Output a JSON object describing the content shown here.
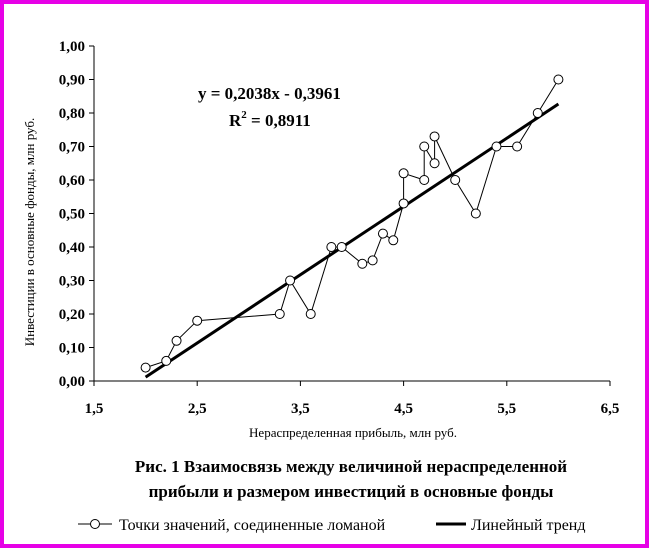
{
  "chart_data": {
    "type": "scatter",
    "x_axis": {
      "label": "Нераспределенная прибыль, млн руб.",
      "range": [
        1.5,
        6.5
      ],
      "ticks": [
        1.5,
        2.5,
        3.5,
        4.5,
        5.5,
        6.5
      ],
      "tick_labels": [
        "1,5",
        "2,5",
        "3,5",
        "4,5",
        "5,5",
        "6,5"
      ]
    },
    "y_axis": {
      "label": "Инвестиции в основные фонды, млн руб.",
      "range": [
        0,
        1.0
      ],
      "ticks": [
        0,
        0.1,
        0.2,
        0.3,
        0.4,
        0.5,
        0.6,
        0.7,
        0.8,
        0.9,
        1.0
      ],
      "tick_labels": [
        "0,00",
        "0,10",
        "0,20",
        "0,30",
        "0,40",
        "0,50",
        "0,60",
        "0,70",
        "0,80",
        "0,90",
        "1,00"
      ]
    },
    "grid": false,
    "series": [
      {
        "name": "Точки значений, соединенные ломаной",
        "kind": "polyline-markers",
        "color": "#000000",
        "points": [
          [
            2.0,
            0.04
          ],
          [
            2.2,
            0.06
          ],
          [
            2.3,
            0.12
          ],
          [
            2.5,
            0.18
          ],
          [
            3.3,
            0.2
          ],
          [
            3.4,
            0.3
          ],
          [
            3.6,
            0.2
          ],
          [
            3.8,
            0.4
          ],
          [
            3.9,
            0.4
          ],
          [
            4.1,
            0.35
          ],
          [
            4.2,
            0.36
          ],
          [
            4.3,
            0.44
          ],
          [
            4.4,
            0.42
          ],
          [
            4.5,
            0.53
          ],
          [
            4.5,
            0.62
          ],
          [
            4.7,
            0.6
          ],
          [
            4.7,
            0.7
          ],
          [
            4.8,
            0.65
          ],
          [
            4.8,
            0.73
          ],
          [
            5.0,
            0.6
          ],
          [
            5.2,
            0.5
          ],
          [
            5.4,
            0.7
          ],
          [
            5.6,
            0.7
          ],
          [
            5.8,
            0.8
          ],
          [
            6.0,
            0.9
          ]
        ]
      },
      {
        "name": "Линейный тренд",
        "kind": "trendline",
        "color": "#000000",
        "slope": 0.2038,
        "intercept": -0.3961,
        "x_from": 2.0,
        "x_to": 6.0
      }
    ],
    "annotations": {
      "equation": "y = 0,2038x - 0,3961",
      "r2_label": "R",
      "r2_sup": "2",
      "r2_value": " = 0,8911"
    },
    "caption_line1": "Рис. 1 Взаимосвязь между величиной нераспределенной",
    "caption_line2": "прибыли и размером инвестиций в основные фонды",
    "legend_position": "bottom"
  },
  "colors": {
    "frame": "#e600e6",
    "ink": "#000000",
    "background": "#ffffff"
  }
}
